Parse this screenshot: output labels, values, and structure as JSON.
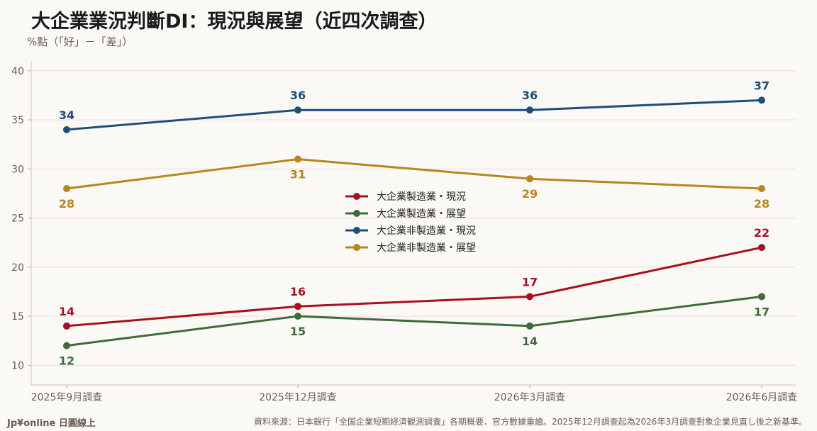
{
  "title": "大企業業況判斷DI：現況與展望（近四次調查）",
  "ylabel": "%點（「好」－「差」）",
  "source": "資料來源：日本銀行「全国企業短期経済観測調査」各期概要．官方數據重繪。2025年12月調查起為2026年3月調查對象企業見直し後之新基準。",
  "brand": "Jp¥online 日圓線上",
  "chart_data": {
    "type": "line",
    "categories": [
      "2025年9月調查",
      "2025年12月調查",
      "2026年3月調查",
      "2026年6月調查"
    ],
    "ylim": [
      8,
      41
    ],
    "yticks": [
      10,
      15,
      20,
      25,
      30,
      35,
      40
    ],
    "grid": true,
    "legend_position": "center",
    "series": [
      {
        "name": "大企業製造業・現況",
        "values": [
          14,
          16,
          17,
          22
        ],
        "color": "#a8101f",
        "label_side": [
          "above",
          "above",
          "above",
          "above"
        ]
      },
      {
        "name": "大企業製造業・展望",
        "values": [
          12,
          15,
          14,
          17
        ],
        "color": "#3d6b3a",
        "label_side": [
          "below",
          "below",
          "below",
          "below"
        ]
      },
      {
        "name": "大企業非製造業・現況",
        "values": [
          34,
          36,
          36,
          37
        ],
        "color": "#1f4e79",
        "label_side": [
          "above",
          "above",
          "above",
          "above"
        ]
      },
      {
        "name": "大企業非製造業・展望",
        "values": [
          28,
          31,
          29,
          28
        ],
        "color": "#b8861b",
        "label_side": [
          "below",
          "below",
          "below",
          "below"
        ]
      }
    ]
  }
}
